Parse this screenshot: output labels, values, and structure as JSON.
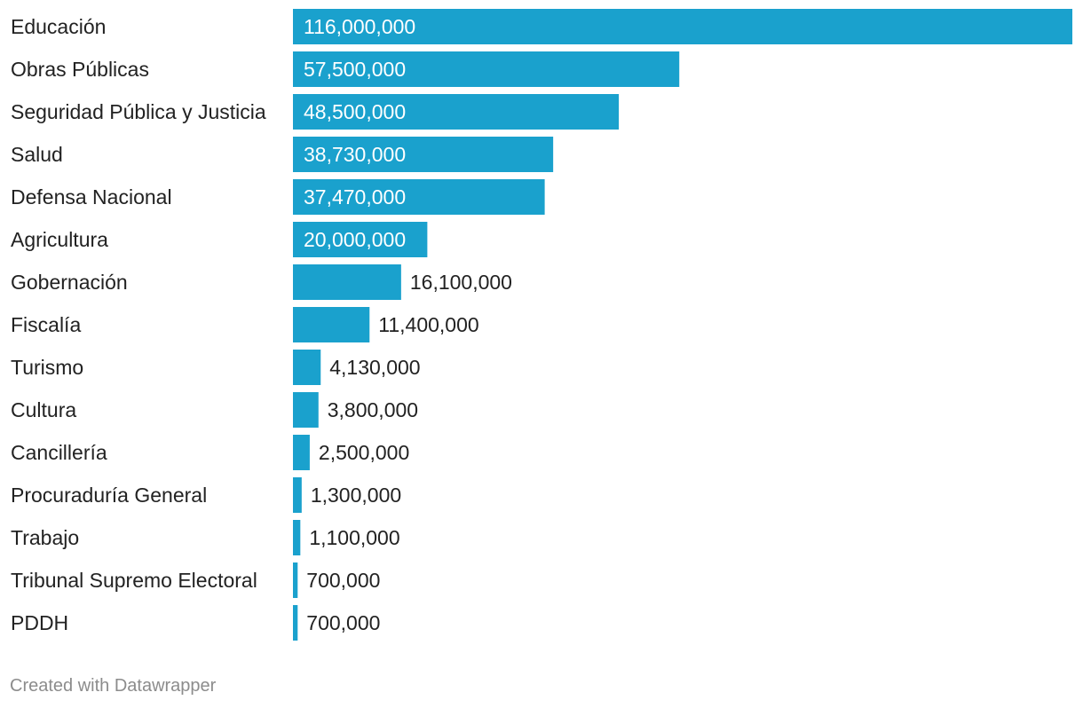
{
  "chart_data": {
    "type": "bar",
    "orientation": "horizontal",
    "title": "",
    "xlabel": "",
    "ylabel": "",
    "categories": [
      "Educación",
      "Obras Públicas",
      "Seguridad Pública y Justicia",
      "Salud",
      "Defensa Nacional",
      "Agricultura",
      "Gobernación",
      "Fiscalía",
      "Turismo",
      "Cultura",
      "Cancillería",
      "Procuraduría General",
      "Trabajo",
      "Tribunal Supremo Electoral",
      "PDDH"
    ],
    "values": [
      116000000,
      57500000,
      48500000,
      38730000,
      37470000,
      20000000,
      16100000,
      11400000,
      4130000,
      3800000,
      2500000,
      1300000,
      1100000,
      700000,
      700000
    ],
    "value_labels": [
      "116,000,000",
      "57,500,000",
      "48,500,000",
      "38,730,000",
      "37,470,000",
      "20,000,000",
      "16,100,000",
      "11,400,000",
      "4,130,000",
      "3,800,000",
      "2,500,000",
      "1,300,000",
      "1,100,000",
      "700,000",
      "700,000"
    ],
    "xlim": [
      0,
      116000000
    ],
    "grid": false,
    "legend": "none"
  },
  "colors": {
    "bar": "#1aa1cd",
    "label_inside": "#ffffff",
    "label_outside": "#222222"
  },
  "footer": {
    "credit": "Created with Datawrapper"
  }
}
